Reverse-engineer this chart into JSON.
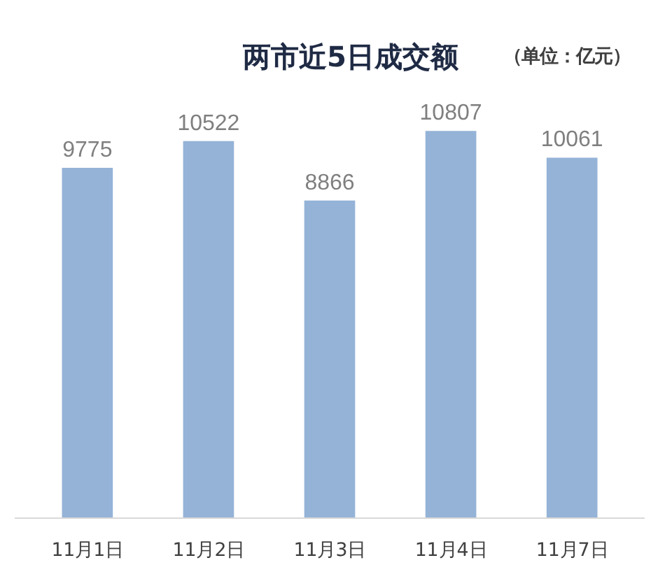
{
  "chart_data": {
    "type": "bar",
    "title": "两市近5日成交额",
    "annotations": [
      "（单位：亿元）"
    ],
    "categories": [
      "11月1日",
      "11月2日",
      "11月3日",
      "11月4日",
      "11月7日"
    ],
    "values": [
      9775,
      10522,
      8866,
      10807,
      10061
    ],
    "color": "#95b3d7",
    "data_labels": true
  }
}
